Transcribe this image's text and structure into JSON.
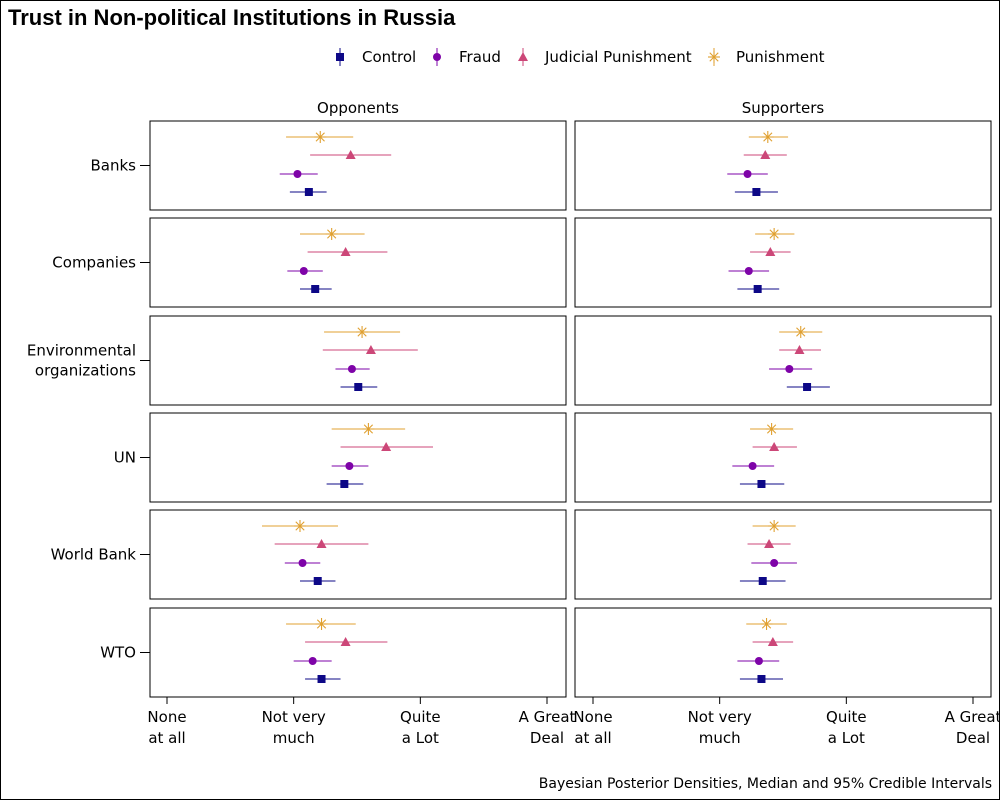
{
  "chart_data": {
    "type": "scatter",
    "title": "Trust in Non-political Institutions in Russia",
    "caption": "Bayesian Posterior Densities, Median and 95% Credible Intervals",
    "facets": [
      "Opponents",
      "Supporters"
    ],
    "categories": [
      "Banks",
      "Companies",
      "Environmental organizations",
      "UN",
      "World Bank",
      "WTO"
    ],
    "category_lines": [
      [
        "Banks"
      ],
      [
        "Companies"
      ],
      [
        "Environmental",
        "organizations"
      ],
      [
        "UN"
      ],
      [
        "World Bank"
      ],
      [
        "WTO"
      ]
    ],
    "x_scale": {
      "min": 1,
      "max": 4
    },
    "x_ticks": [
      {
        "value": 1,
        "lines": [
          "None",
          "at all"
        ]
      },
      {
        "value": 2,
        "lines": [
          "Not very",
          "much"
        ]
      },
      {
        "value": 3,
        "lines": [
          "Quite",
          "a Lot"
        ]
      },
      {
        "value": 4,
        "lines": [
          "A Great",
          "Deal"
        ]
      }
    ],
    "legend_position": "top",
    "series": [
      {
        "name": "Control",
        "color": "#0d0887",
        "marker": "square",
        "data": {
          "Opponents": [
            [
              2.12,
              1.97,
              2.26
            ],
            [
              2.17,
              2.05,
              2.3
            ],
            [
              2.51,
              2.37,
              2.66
            ],
            [
              2.4,
              2.26,
              2.55
            ],
            [
              2.19,
              2.05,
              2.33
            ],
            [
              2.22,
              2.09,
              2.37
            ]
          ],
          "Supporters": [
            [
              2.29,
              2.12,
              2.46
            ],
            [
              2.3,
              2.14,
              2.47
            ],
            [
              2.69,
              2.53,
              2.87
            ],
            [
              2.33,
              2.16,
              2.51
            ],
            [
              2.34,
              2.16,
              2.52
            ],
            [
              2.33,
              2.16,
              2.5
            ]
          ]
        }
      },
      {
        "name": "Fraud",
        "color": "#7e03a8",
        "marker": "circle",
        "data": {
          "Opponents": [
            [
              2.03,
              1.89,
              2.19
            ],
            [
              2.08,
              1.95,
              2.23
            ],
            [
              2.46,
              2.33,
              2.6
            ],
            [
              2.44,
              2.3,
              2.59
            ],
            [
              2.07,
              1.93,
              2.21
            ],
            [
              2.15,
              2.0,
              2.3
            ]
          ],
          "Supporters": [
            [
              2.22,
              2.06,
              2.38
            ],
            [
              2.23,
              2.07,
              2.39
            ],
            [
              2.55,
              2.39,
              2.73
            ],
            [
              2.26,
              2.1,
              2.43
            ],
            [
              2.43,
              2.25,
              2.61
            ],
            [
              2.31,
              2.14,
              2.47
            ]
          ]
        }
      },
      {
        "name": "Judicial Punishment",
        "color": "#cc4778",
        "marker": "triangle",
        "data": {
          "Opponents": [
            [
              2.45,
              2.13,
              2.77
            ],
            [
              2.41,
              2.11,
              2.74
            ],
            [
              2.61,
              2.23,
              2.98
            ],
            [
              2.73,
              2.37,
              3.1
            ],
            [
              2.22,
              1.85,
              2.59
            ],
            [
              2.41,
              2.09,
              2.74
            ]
          ],
          "Supporters": [
            [
              2.36,
              2.19,
              2.53
            ],
            [
              2.4,
              2.24,
              2.56
            ],
            [
              2.63,
              2.47,
              2.8
            ],
            [
              2.43,
              2.26,
              2.61
            ],
            [
              2.39,
              2.22,
              2.56
            ],
            [
              2.42,
              2.26,
              2.58
            ]
          ]
        }
      },
      {
        "name": "Punishment",
        "color": "#e0a030",
        "marker": "asterisk",
        "data": {
          "Opponents": [
            [
              2.21,
              1.94,
              2.47
            ],
            [
              2.3,
              2.05,
              2.56
            ],
            [
              2.54,
              2.24,
              2.84
            ],
            [
              2.59,
              2.3,
              2.88
            ],
            [
              2.05,
              1.75,
              2.35
            ],
            [
              2.22,
              1.94,
              2.49
            ]
          ],
          "Supporters": [
            [
              2.38,
              2.23,
              2.54
            ],
            [
              2.43,
              2.28,
              2.59
            ],
            [
              2.64,
              2.47,
              2.81
            ],
            [
              2.41,
              2.24,
              2.58
            ],
            [
              2.43,
              2.26,
              2.6
            ],
            [
              2.37,
              2.21,
              2.53
            ]
          ]
        }
      }
    ]
  }
}
